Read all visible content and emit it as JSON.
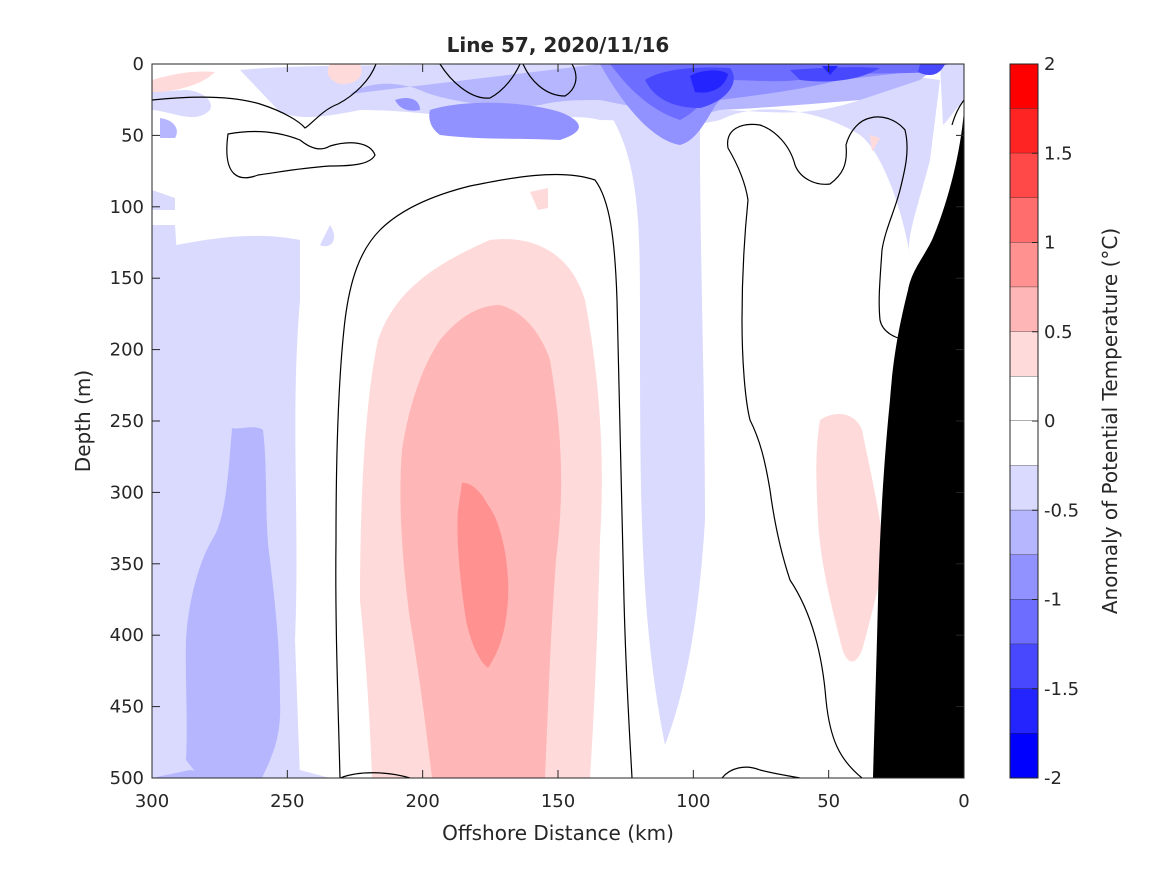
{
  "chart_data": {
    "type": "heatmap",
    "title": "Line 57, 2020/11/16",
    "xlabel": "Offshore Distance (km)",
    "ylabel": "Depth (m)",
    "colorbar_label": "Anomaly of Potential Temperature (°C)",
    "xlim": [
      300,
      0
    ],
    "ylim": [
      500,
      0
    ],
    "x_reversed": true,
    "y_reversed": true,
    "x_ticks": [
      "300",
      "250",
      "200",
      "150",
      "100",
      "50",
      "0"
    ],
    "y_ticks": [
      "0",
      "50",
      "100",
      "150",
      "200",
      "250",
      "300",
      "350",
      "400",
      "450",
      "500"
    ],
    "colorbar_ticks": [
      "2",
      "1.5",
      "1",
      "0.5",
      "0",
      "-0.5",
      "-1",
      "-1.5",
      "-2"
    ],
    "colorbar_range": [
      -2,
      2
    ],
    "contour_interval": 0.25,
    "zero_contour_color": "#000000",
    "land_mask_color": "#000000",
    "colormap": {
      "levels": [
        {
          "min": 1.75,
          "max": 2.0,
          "color": "#ff0000"
        },
        {
          "min": 1.5,
          "max": 1.75,
          "color": "#ff2424"
        },
        {
          "min": 1.25,
          "max": 1.5,
          "color": "#ff4848"
        },
        {
          "min": 1.0,
          "max": 1.25,
          "color": "#ff6d6d"
        },
        {
          "min": 0.75,
          "max": 1.0,
          "color": "#ff9191"
        },
        {
          "min": 0.5,
          "max": 0.75,
          "color": "#ffb6b6"
        },
        {
          "min": 0.25,
          "max": 0.5,
          "color": "#ffdada"
        },
        {
          "min": 0.0,
          "max": 0.25,
          "color": "#ffffff"
        },
        {
          "min": -0.25,
          "max": 0.0,
          "color": "#ffffff"
        },
        {
          "min": -0.5,
          "max": -0.25,
          "color": "#dadaff"
        },
        {
          "min": -0.75,
          "max": -0.5,
          "color": "#b6b6ff"
        },
        {
          "min": -1.0,
          "max": -0.75,
          "color": "#9191ff"
        },
        {
          "min": -1.25,
          "max": -1.0,
          "color": "#6d6dff"
        },
        {
          "min": -1.5,
          "max": -1.25,
          "color": "#4848ff"
        },
        {
          "min": -1.75,
          "max": -1.5,
          "color": "#2424ff"
        },
        {
          "min": -2.0,
          "max": -1.75,
          "color": "#0000ff"
        }
      ]
    }
  }
}
